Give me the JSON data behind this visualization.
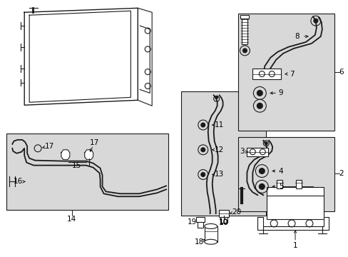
{
  "bg": "#ffffff",
  "line": "#1a1a1a",
  "gray": "#d8d8d8",
  "lw": 0.8,
  "fig_w": 4.89,
  "fig_h": 3.6,
  "dpi": 100
}
